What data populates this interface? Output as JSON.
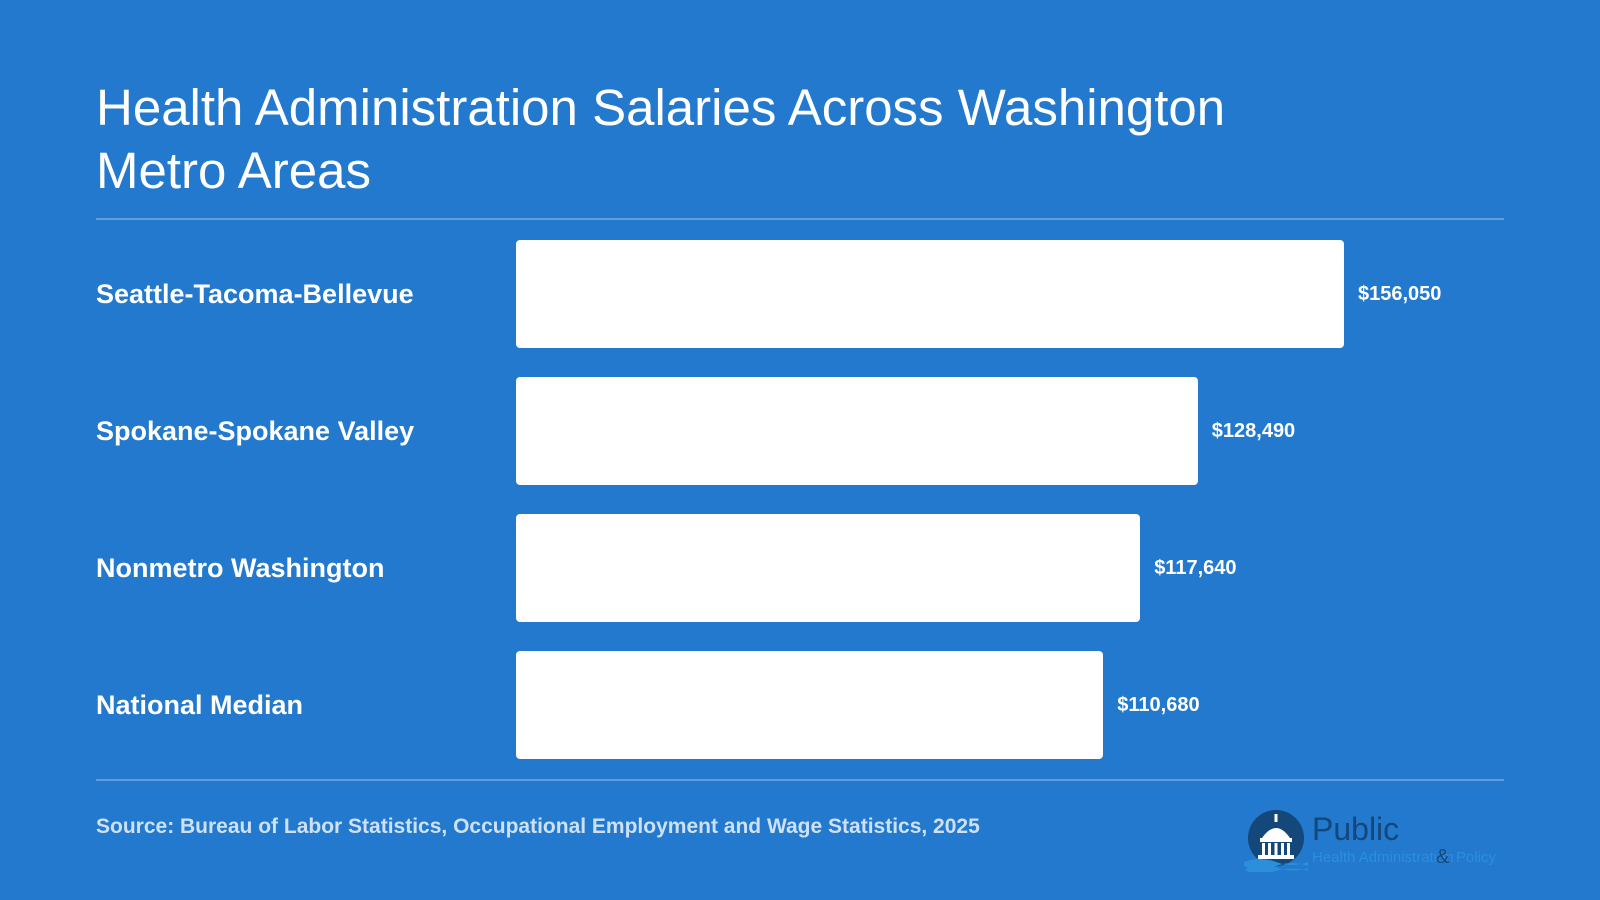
{
  "title": "Health Administration Salaries Across Washington Metro Areas",
  "source": "Source: Bureau of Labor Statistics, Occupational Employment and Wage Statistics, 2025",
  "logo": {
    "word": "Public",
    "sub1": "Health Administration",
    "amp": "&",
    "sub2": "Policy"
  },
  "colors": {
    "background": "#2279cd",
    "bar": "#ffffff",
    "text": "#ffffff"
  },
  "chart_data": {
    "type": "bar",
    "orientation": "horizontal",
    "categories": [
      "Seattle-Tacoma-Bellevue",
      "Spokane-Spokane Valley",
      "Nonmetro Washington",
      "National Median"
    ],
    "values": [
      156050,
      128490,
      117640,
      110680
    ],
    "value_labels": [
      "$156,050",
      "$128,490",
      "$117,640",
      "$110,680"
    ],
    "title": "Health Administration Salaries Across Washington Metro Areas",
    "xlabel": "",
    "ylabel": "",
    "grid": false,
    "legend": "none"
  }
}
